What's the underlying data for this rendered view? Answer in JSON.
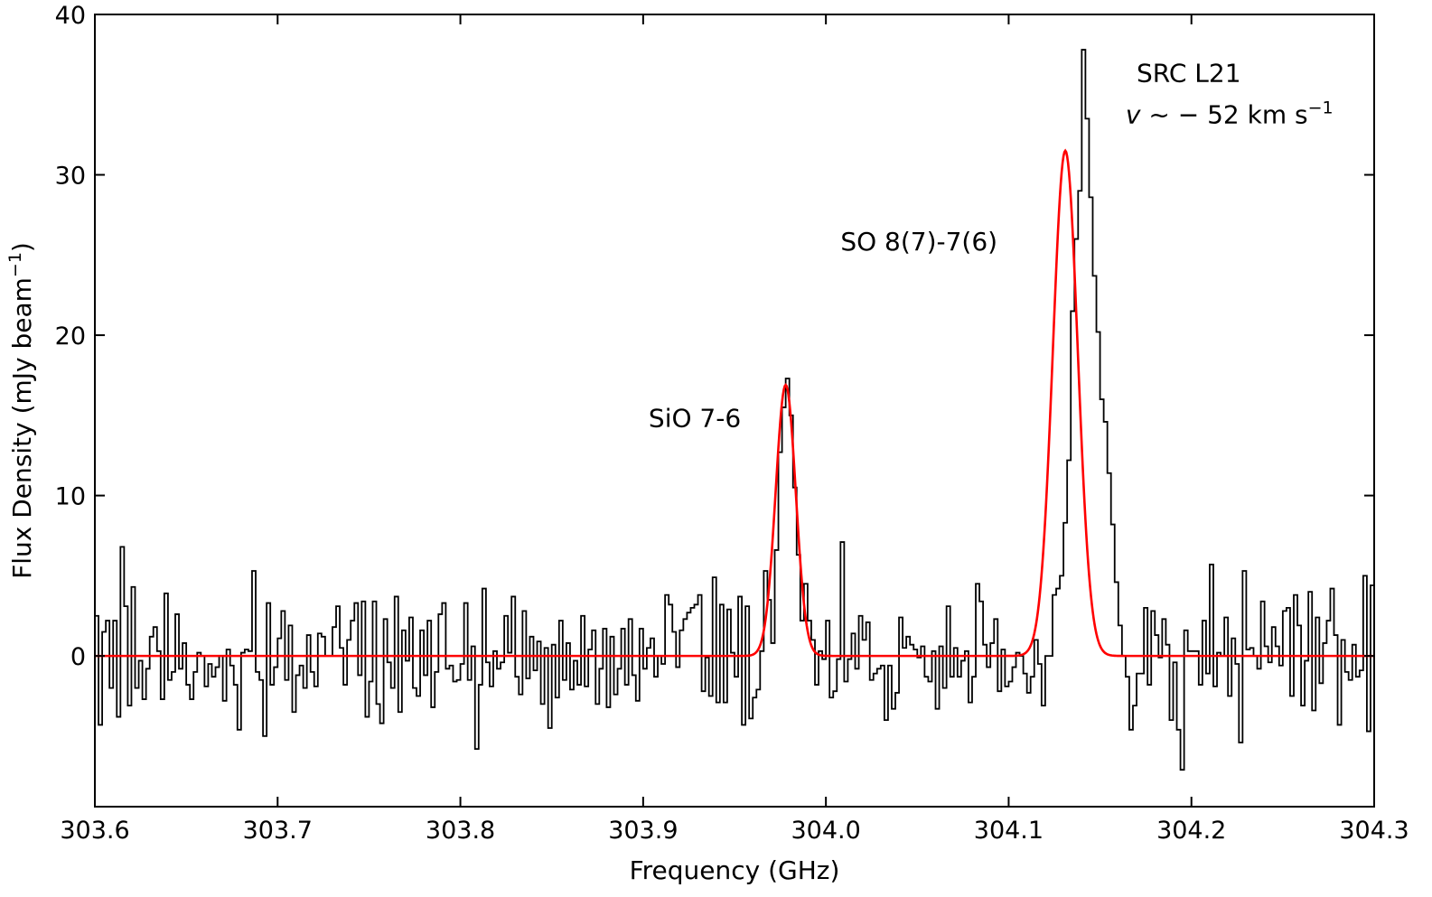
{
  "chart_data": {
    "type": "line",
    "xlabel": "Frequency (GHz)",
    "ylabel": "Flux Density (mJy beam",
    "ylabel_sup": "−1",
    "ylabel_end": ")",
    "xlim": [
      303.6,
      304.3
    ],
    "ylim": [
      -9.4,
      40
    ],
    "xticks": [
      303.6,
      303.7,
      303.8,
      303.9,
      304.0,
      304.1,
      304.2,
      304.3
    ],
    "xtick_labels": [
      "303.6",
      "303.7",
      "303.8",
      "303.9",
      "304.0",
      "304.1",
      "304.2",
      "304.3"
    ],
    "yticks": [
      0,
      10,
      20,
      30,
      40
    ],
    "ytick_labels": [
      "0",
      "10",
      "20",
      "30",
      "40"
    ],
    "grid": false,
    "series": [
      {
        "style": "step",
        "color": "#000000",
        "x_start": 303.6,
        "x_step": 0.002,
        "values": [
          2.5,
          -4.3,
          1.5,
          2.2,
          -2.0,
          2.2,
          -3.8,
          6.8,
          3.1,
          -3.1,
          4.3,
          -2.0,
          -0.3,
          -2.7,
          -0.8,
          1.2,
          1.8,
          0.3,
          -2.7,
          3.9,
          -1.5,
          -1.0,
          2.6,
          -0.8,
          0.8,
          -1.8,
          -2.7,
          -1.0,
          0.2,
          0.0,
          -1.9,
          -0.5,
          -1.3,
          -0.7,
          0.0,
          -2.8,
          0.4,
          -0.6,
          -1.8,
          -4.6,
          0.2,
          0.4,
          0.3,
          5.3,
          -1.0,
          -1.5,
          -5.0,
          3.3,
          -1.8,
          -0.7,
          1.1,
          2.8,
          -1.5,
          1.9,
          -3.5,
          -1.2,
          -0.6,
          -2.0,
          1.3,
          -1.0,
          -1.9,
          1.4,
          1.2,
          0.0,
          0.0,
          1.8,
          3.1,
          0.5,
          -1.8,
          1.0,
          2.2,
          3.3,
          -1.2,
          3.4,
          -3.8,
          -1.6,
          3.4,
          -3.0,
          -4.2,
          2.3,
          -0.4,
          -2.0,
          3.7,
          -3.5,
          1.6,
          -0.3,
          2.4,
          -2.0,
          -2.5,
          1.6,
          -1.2,
          2.2,
          -3.2,
          -1.0,
          2.6,
          3.3,
          -0.8,
          -0.6,
          -1.6,
          -1.5,
          -0.5,
          3.3,
          -1.5,
          0.6,
          -5.8,
          -1.8,
          4.2,
          -0.4,
          -1.9,
          0.3,
          -0.8,
          -0.4,
          2.5,
          0.2,
          3.7,
          -1.3,
          -2.4,
          2.8,
          -1.4,
          1.2,
          -0.9,
          0.9,
          -3.0,
          0.5,
          -4.5,
          0.7,
          -2.6,
          2.2,
          -1.5,
          0.8,
          -2.1,
          -0.3,
          -1.8,
          2.5,
          -1.9,
          0.4,
          1.6,
          -3.0,
          -0.8,
          1.7,
          -3.2,
          1.2,
          -2.4,
          -0.8,
          1.7,
          -1.8,
          2.3,
          -1.2,
          -2.8,
          1.7,
          -0.8,
          0.5,
          1.1,
          -1.3,
          0.0,
          -0.5,
          3.8,
          3.2,
          1.5,
          -0.7,
          1.6,
          2.3,
          2.7,
          3.0,
          3.2,
          3.8,
          -2.2,
          -0.1,
          -2.5,
          4.9,
          -2.9,
          3.2,
          -2.9,
          2.9,
          0.2,
          -1.3,
          3.7,
          -4.3,
          3.1,
          -3.9,
          -2.6,
          -2.1,
          0.3,
          5.3,
          3.5,
          0.8,
          6.6,
          12.7,
          15.5,
          17.3,
          15.0,
          10.5,
          6.3,
          2.2,
          4.5,
          2.2,
          1.0,
          -1.8,
          0.3,
          -0.2,
          2.2,
          -2.6,
          -2.2,
          -0.2,
          7.1,
          -1.6,
          -0.2,
          1.4,
          -0.8,
          2.5,
          1.0,
          2.1,
          -1.5,
          -1.1,
          -0.8,
          -0.6,
          -4.0,
          -0.6,
          -3.3,
          -2.3,
          2.4,
          0.5,
          1.2,
          0.7,
          0.4,
          -0.1,
          0.6,
          -1.3,
          -1.6,
          0.3,
          -3.3,
          0.6,
          -2.0,
          3.1,
          -1.3,
          0.5,
          -1.3,
          -0.3,
          0.3,
          -2.9,
          -1.3,
          4.5,
          3.4,
          0.7,
          -0.7,
          0.8,
          2.3,
          -2.2,
          0.4,
          -1.9,
          -1.6,
          -0.7,
          0.2,
          0.0,
          -1.1,
          -2.3,
          -1.3,
          1.0,
          -0.5,
          -3.1,
          0.0,
          0.0,
          3.8,
          4.2,
          5.0,
          8.3,
          12.2,
          21.5,
          26.0,
          29.0,
          37.8,
          33.5,
          28.6,
          23.7,
          20.2,
          16.0,
          14.6,
          11.4,
          8.2,
          4.6,
          1.9,
          0.0,
          -1.3,
          -4.6,
          -3.1,
          -1.1,
          -1.1,
          3.0,
          -1.8,
          2.8,
          1.3,
          -0.1,
          2.3,
          0.7,
          -4.0,
          -0.4,
          -4.6,
          -7.1,
          1.6,
          0.3,
          0.3,
          0.3,
          -1.8,
          2.2,
          -1.1,
          5.7,
          -1.9,
          0.2,
          0.0,
          2.4,
          -2.5,
          1.1,
          -0.5,
          -5.4,
          5.3,
          0.4,
          0.5,
          0.0,
          -0.8,
          3.4,
          0.6,
          -0.4,
          1.8,
          0.6,
          -0.6,
          2.8,
          3.0,
          -2.5,
          3.8,
          1.9,
          -3.1,
          -0.3,
          4.0,
          -3.4,
          2.4,
          -1.7,
          0.8,
          2.2,
          4.2,
          1.3,
          -4.3,
          1.0,
          -1.0,
          -1.5,
          0.7,
          -1.3,
          -0.9,
          5.0,
          -4.7,
          4.4
        ]
      },
      {
        "style": "line",
        "color": "#ff0000",
        "components": [
          {
            "center": 303.978,
            "amplitude": 16.9,
            "sigma": 0.0055
          },
          {
            "center": 304.131,
            "amplitude": 31.5,
            "sigma": 0.0068
          }
        ]
      }
    ],
    "annotations": [
      {
        "text": "SiO 7-6",
        "x": 303.903,
        "y": 14.3
      },
      {
        "text": "SO 8(7)-7(6)",
        "x": 304.008,
        "y": 25.3
      },
      {
        "text": "SRC L21",
        "x": 304.17,
        "y": 35.8
      }
    ],
    "velocity_annotation": {
      "italic": "v",
      "main": " ~ − 52 km s",
      "sup": "−1",
      "x": 304.164,
      "y": 33.2
    }
  }
}
